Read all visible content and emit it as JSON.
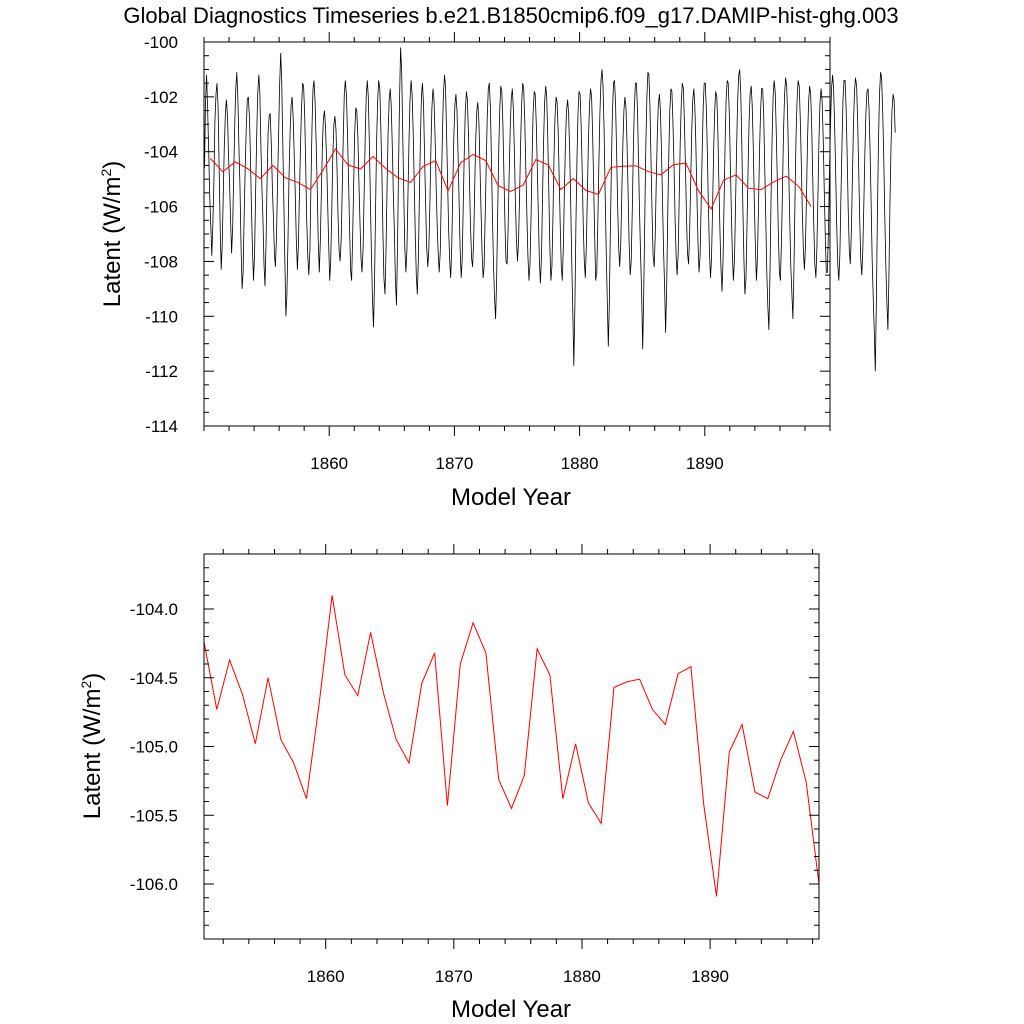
{
  "title": "Global Diagnostics Timeseries b.e21.B1850cmip6.f09_g17.DAMIP-hist-ghg.003",
  "colors": {
    "monthly": "#000000",
    "annual": "#ff0000"
  },
  "chart_data": [
    {
      "type": "line",
      "xlabel": "Model Year",
      "ylabel": "Latent (W/m²)",
      "ylabel_main": "Latent (W/m",
      "ylabel_sup": "2",
      "ylabel_close": ")",
      "xlim": [
        1850,
        1900
      ],
      "ylim": [
        -114,
        -100
      ],
      "xticks": [
        1860,
        1870,
        1880,
        1890
      ],
      "xtick_labels": [
        "1860",
        "1870",
        "1880",
        "1890"
      ],
      "yticks": [
        -114,
        -112,
        -110,
        -108,
        -106,
        -104,
        -102,
        -100
      ],
      "ytick_labels": [
        "-114",
        "-112",
        "-110",
        "-108",
        "-106",
        "-104",
        "-102",
        "-100"
      ],
      "grid": false,
      "series": [
        {
          "key": "monthly",
          "color": "#000000",
          "x_start": 1850.04,
          "x_step": 0.08333,
          "values": [
            -104.6,
            -102.2,
            -101.2,
            -102.4,
            -104.0,
            -105.6,
            -106.7,
            -107.8,
            -106.7,
            -105.1,
            -102.9,
            -101.9,
            -101.5,
            -102.4,
            -104.5,
            -106.8,
            -108.3,
            -107.4,
            -105.5,
            -103.8,
            -102.6,
            -102.1,
            -102.7,
            -104.1,
            -105.1,
            -106.5,
            -107.7,
            -106.7,
            -104.8,
            -102.9,
            -101.7,
            -101.1,
            -102.1,
            -103.8,
            -105.3,
            -107.4,
            -109.0,
            -108.4,
            -106.4,
            -104.6,
            -103.2,
            -102.1,
            -102.0,
            -102.7,
            -104.1,
            -106.0,
            -107.6,
            -108.7,
            -107.7,
            -105.5,
            -103.4,
            -101.9,
            -101.2,
            -101.8,
            -103.6,
            -105.3,
            -106.4,
            -108.1,
            -108.9,
            -107.2,
            -105.0,
            -103.3,
            -102.7,
            -102.6,
            -103.7,
            -105.2,
            -106.4,
            -107.7,
            -108.2,
            -107.1,
            -105.2,
            -103.4,
            -101.6,
            -100.4,
            -101.4,
            -103.5,
            -105.7,
            -107.9,
            -110.0,
            -109.2,
            -107.2,
            -104.9,
            -103.3,
            -102.3,
            -102.0,
            -102.8,
            -104.1,
            -105.6,
            -107.2,
            -108.3,
            -107.4,
            -105.6,
            -103.8,
            -102.4,
            -101.5,
            -101.6,
            -102.7,
            -104.5,
            -106.5,
            -107.8,
            -108.5,
            -107.6,
            -105.3,
            -103.1,
            -101.7,
            -101.4,
            -102.2,
            -103.6,
            -105.3,
            -107.2,
            -108.4,
            -107.3,
            -105.6,
            -103.8,
            -102.8,
            -102.5,
            -103.1,
            -104.3,
            -105.8,
            -107.4,
            -108.7,
            -108.0,
            -106.1,
            -104.2,
            -103.0,
            -102.7,
            -103.2,
            -104.6,
            -106.3,
            -107.6,
            -108.0,
            -107.2,
            -105.4,
            -103.4,
            -101.9,
            -101.4,
            -101.9,
            -103.2,
            -104.9,
            -106.7,
            -108.3,
            -108.7,
            -107.2,
            -105.1,
            -103.3,
            -102.4,
            -102.5,
            -103.5,
            -105.1,
            -106.6,
            -107.9,
            -108.4,
            -107.5,
            -105.6,
            -103.5,
            -102.0,
            -101.4,
            -102.0,
            -103.6,
            -105.8,
            -107.7,
            -109.4,
            -110.4,
            -108.6,
            -106.0,
            -103.6,
            -102.1,
            -101.4,
            -101.7,
            -103.1,
            -104.8,
            -106.9,
            -108.6,
            -109.2,
            -107.6,
            -105.2,
            -103.3,
            -102.1,
            -101.7,
            -102.3,
            -103.8,
            -105.5,
            -106.9,
            -108.7,
            -109.6,
            -107.5,
            -104.4,
            -102.0,
            -100.2,
            -101.1,
            -103.3,
            -105.6,
            -107.5,
            -108.4,
            -107.6,
            -105.7,
            -103.6,
            -102.1,
            -101.4,
            -101.9,
            -103.3,
            -105.1,
            -106.9,
            -108.5,
            -109.2,
            -107.9,
            -105.6,
            -103.4,
            -101.9,
            -101.5,
            -102.4,
            -104.2,
            -106.0,
            -107.5,
            -108.2,
            -107.6,
            -105.9,
            -103.9,
            -102.4,
            -101.7,
            -102.1,
            -103.5,
            -105.2,
            -106.7,
            -107.7,
            -108.4,
            -107.6,
            -105.5,
            -103.4,
            -101.9,
            -101.2,
            -101.6,
            -103.2,
            -105.1,
            -106.8,
            -108.0,
            -108.6,
            -107.4,
            -105.3,
            -103.5,
            -102.3,
            -101.9,
            -102.5,
            -104.0,
            -105.8,
            -107.5,
            -108.6,
            -107.9,
            -106.0,
            -104.0,
            -102.5,
            -101.8,
            -102.1,
            -103.4,
            -105.1,
            -106.7,
            -107.9,
            -108.2,
            -107.2,
            -105.3,
            -103.5,
            -102.5,
            -102.2,
            -102.9,
            -104.4,
            -106.1,
            -107.6,
            -108.6,
            -108.2,
            -106.5,
            -104.5,
            -102.8,
            -101.7,
            -101.5,
            -102.4,
            -104.2,
            -106.3,
            -108.1,
            -109.3,
            -110.1,
            -108.7,
            -106.2,
            -104.0,
            -102.4,
            -101.6,
            -101.8,
            -103.0,
            -104.8,
            -106.7,
            -108.0,
            -108.1,
            -106.8,
            -104.9,
            -103.2,
            -102.1,
            -101.7,
            -102.4,
            -104.0,
            -105.8,
            -107.2,
            -108.0,
            -107.3,
            -105.6,
            -103.7,
            -102.2,
            -101.5,
            -101.7,
            -102.9,
            -104.6,
            -106.3,
            -107.8,
            -108.7,
            -108.1,
            -106.3,
            -104.2,
            -102.6,
            -101.8,
            -101.9,
            -103.0,
            -104.6,
            -106.4,
            -108.0,
            -108.8,
            -107.8,
            -105.7,
            -103.6,
            -102.2,
            -101.6,
            -102.0,
            -103.4,
            -105.4,
            -107.4,
            -108.7,
            -108.2,
            -106.3,
            -104.2,
            -102.7,
            -102.0,
            -102.2,
            -103.3,
            -105.0,
            -106.8,
            -108.2,
            -108.7,
            -107.4,
            -105.4,
            -103.6,
            -102.5,
            -102.1,
            -102.6,
            -104.0,
            -105.9,
            -107.9,
            -109.8,
            -111.8,
            -109.6,
            -106.7,
            -104.2,
            -102.6,
            -101.8,
            -101.9,
            -103.0,
            -104.7,
            -106.6,
            -108.0,
            -108.6,
            -107.5,
            -105.5,
            -103.6,
            -102.3,
            -101.7,
            -102.0,
            -103.3,
            -105.1,
            -107.1,
            -108.7,
            -108.4,
            -106.6,
            -104.4,
            -102.6,
            -101.4,
            -101.0,
            -101.6,
            -103.2,
            -105.4,
            -107.6,
            -109.3,
            -111.1,
            -109.6,
            -107.0,
            -104.5,
            -102.6,
            -101.5,
            -101.4,
            -102.3,
            -104.0,
            -105.9,
            -107.5,
            -108.2,
            -107.3,
            -105.5,
            -103.7,
            -102.5,
            -102.0,
            -102.4,
            -103.7,
            -105.5,
            -107.3,
            -108.5,
            -108.0,
            -106.1,
            -104.0,
            -102.4,
            -101.5,
            -101.5,
            -102.5,
            -104.3,
            -106.3,
            -107.8,
            -109.1,
            -111.2,
            -109.2,
            -106.4,
            -103.8,
            -102.0,
            -101.1,
            -101.2,
            -102.4,
            -104.3,
            -106.3,
            -107.8,
            -108.2,
            -107.1,
            -105.2,
            -103.4,
            -102.3,
            -101.9,
            -102.5,
            -104.0,
            -105.8,
            -107.5,
            -108.9,
            -110.6,
            -108.9,
            -106.4,
            -104.1,
            -102.5,
            -101.7,
            -101.8,
            -102.9,
            -104.5,
            -106.3,
            -107.8,
            -108.5,
            -107.7,
            -105.7,
            -103.7,
            -102.2,
            -101.5,
            -101.7,
            -102.9,
            -104.6,
            -106.4,
            -107.7,
            -108.1,
            -107.0,
            -105.1,
            -103.3,
            -102.1,
            -101.7,
            -102.3,
            -103.8,
            -105.6,
            -107.3,
            -108.4,
            -107.8,
            -106.0,
            -104.0,
            -102.4,
            -101.5,
            -101.5,
            -102.4,
            -104.1,
            -106.0,
            -107.7,
            -108.6,
            -107.9,
            -106.0,
            -104.0,
            -102.5,
            -101.8,
            -102.0,
            -103.2,
            -105.0,
            -106.8,
            -108.2,
            -109.1,
            -108.0,
            -105.8,
            -103.7,
            -102.1,
            -101.4,
            -101.5,
            -102.6,
            -104.4,
            -106.3,
            -107.8,
            -108.7,
            -107.9,
            -106.0,
            -103.9,
            -102.2,
            -101.2,
            -101.0,
            -101.9,
            -103.7,
            -105.9,
            -107.9,
            -109.2,
            -108.6,
            -106.7,
            -104.6,
            -102.9,
            -101.9,
            -101.6,
            -102.3,
            -103.9,
            -105.8,
            -107.5,
            -108.7,
            -107.9,
            -106.0,
            -104.0,
            -102.5,
            -101.7,
            -101.7,
            -102.7,
            -104.5,
            -106.5,
            -108.4,
            -109.7,
            -110.5,
            -108.4,
            -105.8,
            -103.5,
            -102.0,
            -101.4,
            -101.8,
            -103.2,
            -105.0,
            -106.9,
            -108.4,
            -108.7,
            -107.4,
            -105.3,
            -103.3,
            -101.9,
            -101.3,
            -101.6,
            -102.8,
            -104.6,
            -106.6,
            -108.2,
            -109.2,
            -110.1,
            -108.2,
            -105.7,
            -103.5,
            -102.1,
            -101.4,
            -101.6,
            -102.7,
            -104.4,
            -106.2,
            -107.6,
            -108.3,
            -107.5,
            -105.6,
            -103.6,
            -102.2,
            -101.6,
            -101.9,
            -103.1,
            -104.9,
            -106.7,
            -108.1,
            -108.6,
            -107.5,
            -105.5,
            -103.5,
            -102.2,
            -101.7,
            -102.1,
            -103.5,
            -105.3,
            -107.1,
            -108.4,
            -108.4,
            -107.0,
            -104.9,
            -103.0,
            -101.7,
            -101.2,
            -101.7,
            -103.0,
            -104.8,
            -106.7,
            -108.1,
            -108.7,
            -107.7,
            -105.7,
            -103.7,
            -102.1,
            -101.4,
            -101.4,
            -102.4,
            -104.2,
            -106.1,
            -107.6,
            -108.1,
            -107.0,
            -105.0,
            -103.1,
            -101.8,
            -101.3,
            -101.6,
            -102.8,
            -104.5,
            -106.4,
            -107.9,
            -108.5,
            -107.6,
            -105.8,
            -104.0,
            -102.6,
            -101.8,
            -101.7,
            -102.5,
            -104.0,
            -106.0,
            -108.0,
            -109.4,
            -110.6,
            -112.0,
            -109.4,
            -106.3,
            -103.6,
            -101.9,
            -101.1,
            -101.3,
            -102.4,
            -104.1,
            -106.2,
            -108.1,
            -109.4,
            -110.5,
            -108.6,
            -106.0,
            -103.8,
            -102.5,
            -101.9,
            -102.1,
            -103.3
          ]
        },
        {
          "key": "annual",
          "color": "#ff0000",
          "x": [
            1850.5,
            1851.5,
            1852.5,
            1853.5,
            1854.5,
            1855.5,
            1856.5,
            1857.5,
            1858.5,
            1859.5,
            1860.5,
            1861.5,
            1862.5,
            1863.5,
            1864.5,
            1865.5,
            1866.5,
            1867.5,
            1868.5,
            1869.5,
            1870.5,
            1871.5,
            1872.5,
            1873.5,
            1874.5,
            1875.5,
            1876.5,
            1877.5,
            1878.5,
            1879.5,
            1880.5,
            1881.5,
            1882.5,
            1883.5,
            1884.5,
            1885.5,
            1886.5,
            1887.5,
            1888.5,
            1889.5,
            1890.5,
            1891.5,
            1892.5,
            1893.5,
            1894.5,
            1895.5,
            1896.5,
            1897.5,
            1898.5
          ],
          "values": [
            -104.24,
            -104.73,
            -104.37,
            -104.62,
            -104.98,
            -104.5,
            -104.95,
            -105.12,
            -105.38,
            -104.68,
            -103.9,
            -104.48,
            -104.63,
            -104.17,
            -104.61,
            -104.95,
            -105.12,
            -104.54,
            -104.32,
            -105.43,
            -104.4,
            -104.1,
            -104.32,
            -105.24,
            -105.45,
            -105.21,
            -104.29,
            -104.48,
            -105.38,
            -104.98,
            -105.41,
            -105.56,
            -104.57,
            -104.53,
            -104.51,
            -104.73,
            -104.84,
            -104.47,
            -104.42,
            -105.42,
            -106.09,
            -105.04,
            -104.84,
            -105.33,
            -105.38,
            -105.1,
            -104.89,
            -105.26,
            -106.0
          ]
        }
      ]
    },
    {
      "type": "line",
      "xlabel": "Model Year",
      "ylabel": "Latent (W/m²)",
      "ylabel_main": "Latent (W/m",
      "ylabel_sup": "2",
      "ylabel_close": ")",
      "xlim": [
        1850.5,
        1898.5
      ],
      "ylim": [
        -106.4,
        -103.6
      ],
      "xticks": [
        1860,
        1870,
        1880,
        1890
      ],
      "xtick_labels": [
        "1860",
        "1870",
        "1880",
        "1890"
      ],
      "yticks": [
        -106.0,
        -105.5,
        -105.0,
        -104.5,
        -104.0
      ],
      "ytick_labels": [
        "-106.0",
        "-105.5",
        "-105.0",
        "-104.5",
        "-104.0"
      ],
      "grid": false,
      "series": [
        {
          "key": "annual",
          "color": "#ff0000",
          "x": [
            1850.5,
            1851.5,
            1852.5,
            1853.5,
            1854.5,
            1855.5,
            1856.5,
            1857.5,
            1858.5,
            1859.5,
            1860.5,
            1861.5,
            1862.5,
            1863.5,
            1864.5,
            1865.5,
            1866.5,
            1867.5,
            1868.5,
            1869.5,
            1870.5,
            1871.5,
            1872.5,
            1873.5,
            1874.5,
            1875.5,
            1876.5,
            1877.5,
            1878.5,
            1879.5,
            1880.5,
            1881.5,
            1882.5,
            1883.5,
            1884.5,
            1885.5,
            1886.5,
            1887.5,
            1888.5,
            1889.5,
            1890.5,
            1891.5,
            1892.5,
            1893.5,
            1894.5,
            1895.5,
            1896.5,
            1897.5,
            1898.5
          ],
          "values": [
            -104.24,
            -104.73,
            -104.37,
            -104.62,
            -104.98,
            -104.5,
            -104.95,
            -105.12,
            -105.38,
            -104.68,
            -103.9,
            -104.48,
            -104.63,
            -104.17,
            -104.61,
            -104.95,
            -105.12,
            -104.54,
            -104.32,
            -105.43,
            -104.4,
            -104.1,
            -104.32,
            -105.24,
            -105.45,
            -105.21,
            -104.29,
            -104.48,
            -105.38,
            -104.98,
            -105.41,
            -105.56,
            -104.57,
            -104.53,
            -104.51,
            -104.73,
            -104.84,
            -104.47,
            -104.42,
            -105.42,
            -106.09,
            -105.04,
            -104.84,
            -105.33,
            -105.38,
            -105.1,
            -104.89,
            -105.26,
            -106.0
          ]
        }
      ]
    }
  ]
}
